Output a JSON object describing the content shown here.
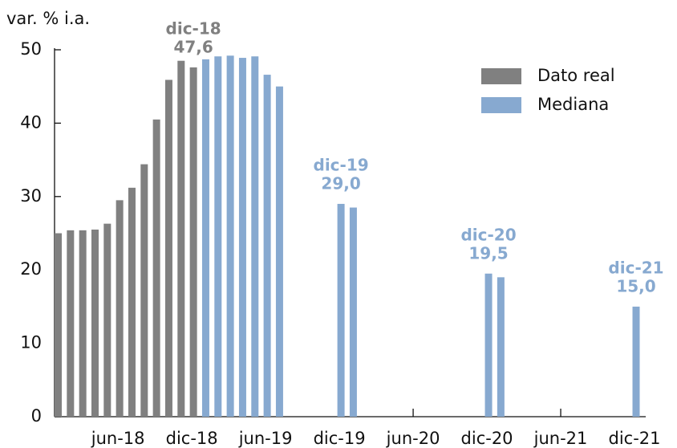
{
  "chart_data": {
    "type": "bar",
    "y_label": "var. % i.a.",
    "categories": [
      null,
      null,
      null,
      null,
      null,
      "jun-18",
      null,
      null,
      null,
      null,
      null,
      "dic-18",
      null,
      null,
      null,
      null,
      null,
      "jun-19",
      null,
      null,
      null,
      null,
      null,
      "dic-19",
      null,
      null,
      null,
      null,
      null,
      "jun-20",
      null,
      null,
      null,
      null,
      null,
      "dic-20",
      null,
      null,
      null,
      null,
      null,
      "jun-21",
      null,
      null,
      null,
      null,
      null,
      "dic-21"
    ],
    "series": [
      {
        "name": "Dato real",
        "color": "#808080",
        "values": [
          25.0,
          25.4,
          25.4,
          25.5,
          26.3,
          29.5,
          31.2,
          34.4,
          40.5,
          45.9,
          48.5,
          47.6,
          null,
          null,
          null,
          null,
          null,
          null,
          null,
          null,
          null,
          null,
          null,
          null,
          null,
          null,
          null,
          null,
          null,
          null,
          null,
          null,
          null,
          null,
          null,
          null,
          null,
          null,
          null,
          null,
          null,
          null,
          null,
          null,
          null,
          null,
          null,
          null
        ],
        "value_labels": [
          null,
          null,
          null,
          null,
          null,
          null,
          null,
          null,
          null,
          null,
          null,
          "47,6",
          null,
          null,
          null,
          null,
          null,
          null,
          null,
          null,
          null,
          null,
          null,
          null,
          null,
          null,
          null,
          null,
          null,
          null,
          null,
          null,
          null,
          null,
          null,
          null,
          null,
          null,
          null,
          null,
          null,
          null,
          null,
          null,
          null,
          null,
          null,
          null
        ]
      },
      {
        "name": "Mediana",
        "color": "#87a9d0",
        "values": [
          null,
          null,
          null,
          null,
          null,
          null,
          null,
          null,
          null,
          null,
          null,
          null,
          48.7,
          49.1,
          49.2,
          48.9,
          49.1,
          46.6,
          45.0,
          null,
          null,
          null,
          null,
          29.0,
          28.5,
          null,
          null,
          null,
          null,
          null,
          null,
          null,
          null,
          null,
          null,
          19.5,
          19.0,
          null,
          null,
          null,
          null,
          null,
          null,
          null,
          null,
          null,
          null,
          15.0
        ],
        "value_labels": [
          null,
          null,
          null,
          null,
          null,
          null,
          null,
          null,
          null,
          null,
          null,
          null,
          null,
          null,
          null,
          null,
          null,
          null,
          null,
          null,
          null,
          null,
          null,
          "29,0",
          null,
          null,
          null,
          null,
          null,
          null,
          null,
          null,
          null,
          null,
          null,
          "19,5",
          null,
          null,
          null,
          null,
          null,
          null,
          null,
          null,
          null,
          null,
          null,
          "15,0"
        ]
      }
    ],
    "ylim": [
      0,
      50
    ],
    "yticks": [
      0,
      10,
      20,
      30,
      40,
      50
    ],
    "grid": false,
    "legend": "top-right"
  }
}
